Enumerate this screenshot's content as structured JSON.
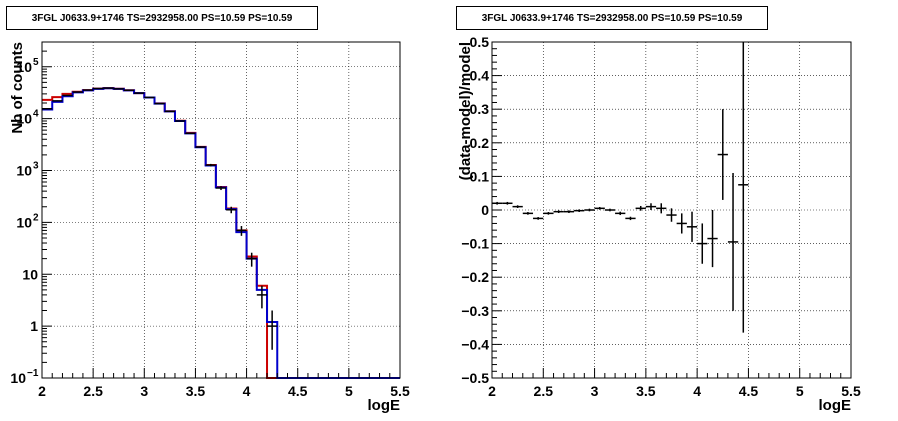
{
  "chart_data": [
    {
      "type": "line",
      "title": "3FGL J0633.9+1746 TS=2932958.00 PS=10.59 PS=10.59",
      "xlabel": "logE",
      "ylabel": "Nb of counts",
      "xlim": [
        2,
        5.5
      ],
      "ylim": [
        0.1,
        300000
      ],
      "yscale": "log",
      "grid": true,
      "x_ticks": [
        "2",
        "2.5",
        "3",
        "3.5",
        "4",
        "4.5",
        "5",
        "5.5"
      ],
      "y_ticks": [
        "10^-1",
        "1",
        "10",
        "10^2",
        "10^3",
        "10^4",
        "10^5"
      ],
      "bin_edges": [
        2.0,
        2.1,
        2.2,
        2.3,
        2.4,
        2.5,
        2.6,
        2.7,
        2.8,
        2.9,
        3.0,
        3.1,
        3.2,
        3.3,
        3.4,
        3.5,
        3.6,
        3.7,
        3.8,
        3.9,
        4.0,
        4.1,
        4.2,
        4.3,
        4.4,
        4.5,
        4.6,
        4.7,
        4.8,
        4.9,
        5.0,
        5.1,
        5.2,
        5.3,
        5.4,
        5.5
      ],
      "series": [
        {
          "color": "#0000cc",
          "style": "step",
          "values": [
            15000,
            21000,
            27000,
            32000,
            35000,
            37500,
            38500,
            37500,
            35000,
            31000,
            25500,
            19500,
            13800,
            9000,
            5200,
            2800,
            1250,
            470,
            180,
            65,
            20,
            5,
            1.2,
            0.1,
            0.1,
            0.1,
            0.1,
            0.1,
            0.1,
            0.1,
            0.1,
            0.1,
            0.1,
            0.1,
            0.1
          ]
        },
        {
          "color": "#cc0000",
          "style": "step",
          "values": [
            23000,
            26000,
            30000,
            33000,
            35500,
            37800,
            38800,
            37600,
            35200,
            31000,
            25500,
            19700,
            13900,
            9100,
            5300,
            2850,
            1280,
            480,
            185,
            70,
            22,
            6,
            0.1,
            0.1,
            0.1,
            0.1,
            0.1,
            0.1,
            0.1,
            0.1,
            0.1,
            0.1,
            0.1,
            0.1,
            0.1
          ]
        },
        {
          "color": "#000000",
          "style": "errorbar",
          "points": [
            [
              2.05,
              15500,
              15200,
              15800
            ],
            [
              2.15,
              22000,
              21600,
              22400
            ],
            [
              2.25,
              28000,
              27600,
              28400
            ],
            [
              2.35,
              32500,
              32000,
              33000
            ],
            [
              2.45,
              35500,
              35000,
              36000
            ],
            [
              2.55,
              38000,
              37500,
              38500
            ],
            [
              2.65,
              38800,
              38300,
              39300
            ],
            [
              2.75,
              37500,
              37000,
              38000
            ],
            [
              2.85,
              35200,
              34700,
              35700
            ],
            [
              2.95,
              31000,
              30600,
              31400
            ],
            [
              3.05,
              25600,
              25200,
              26000
            ],
            [
              3.15,
              19500,
              19200,
              19800
            ],
            [
              3.25,
              13800,
              13500,
              14100
            ],
            [
              3.35,
              9000,
              8800,
              9200
            ],
            [
              3.45,
              5200,
              5050,
              5350
            ],
            [
              3.55,
              2830,
              2730,
              2930
            ],
            [
              3.65,
              1270,
              1200,
              1340
            ],
            [
              3.75,
              460,
              420,
              500
            ],
            [
              3.85,
              175,
              150,
              200
            ],
            [
              3.95,
              70,
              55,
              85
            ],
            [
              4.05,
              20,
              14,
              26
            ],
            [
              4.15,
              4,
              2.2,
              6
            ],
            [
              4.25,
              1,
              0.35,
              2
            ]
          ]
        }
      ]
    },
    {
      "type": "scatter",
      "title": "3FGL J0633.9+1746 TS=2932958.00 PS=10.59 PS=10.59",
      "xlabel": "logE",
      "ylabel": "(data-model)/model",
      "xlim": [
        2,
        5.5
      ],
      "ylim": [
        -0.5,
        0.5
      ],
      "grid": true,
      "x_ticks": [
        "2",
        "2.5",
        "3",
        "3.5",
        "4",
        "4.5",
        "5",
        "5.5"
      ],
      "y_ticks": [
        "−0.5",
        "−0.4",
        "−0.3",
        "−0.2",
        "−0.1",
        "0",
        "0.1",
        "0.2",
        "0.3",
        "0.4",
        "0.5"
      ],
      "points": [
        {
          "x": 2.05,
          "y": 0.02,
          "yerr": 0.004
        },
        {
          "x": 2.15,
          "y": 0.02,
          "yerr": 0.004
        },
        {
          "x": 2.25,
          "y": 0.01,
          "yerr": 0.004
        },
        {
          "x": 2.35,
          "y": -0.01,
          "yerr": 0.004
        },
        {
          "x": 2.45,
          "y": -0.025,
          "yerr": 0.004
        },
        {
          "x": 2.55,
          "y": -0.01,
          "yerr": 0.004
        },
        {
          "x": 2.65,
          "y": -0.005,
          "yerr": 0.004
        },
        {
          "x": 2.75,
          "y": -0.005,
          "yerr": 0.004
        },
        {
          "x": 2.85,
          "y": -0.002,
          "yerr": 0.004
        },
        {
          "x": 2.95,
          "y": 0.0,
          "yerr": 0.004
        },
        {
          "x": 3.05,
          "y": 0.005,
          "yerr": 0.004
        },
        {
          "x": 3.15,
          "y": 0.0,
          "yerr": 0.004
        },
        {
          "x": 3.25,
          "y": -0.01,
          "yerr": 0.005
        },
        {
          "x": 3.35,
          "y": -0.025,
          "yerr": 0.005
        },
        {
          "x": 3.45,
          "y": 0.005,
          "yerr": 0.007
        },
        {
          "x": 3.55,
          "y": 0.01,
          "yerr": 0.01
        },
        {
          "x": 3.65,
          "y": 0.005,
          "yerr": 0.015
        },
        {
          "x": 3.75,
          "y": -0.015,
          "yerr": 0.02
        },
        {
          "x": 3.85,
          "y": -0.04,
          "yerr": 0.03
        },
        {
          "x": 3.95,
          "y": -0.05,
          "yerr": 0.045
        },
        {
          "x": 4.05,
          "y": -0.1,
          "yerr": 0.06
        },
        {
          "x": 4.15,
          "y": -0.085,
          "yerr": 0.085
        },
        {
          "x": 4.25,
          "y": 0.165,
          "yerr": 0.135
        },
        {
          "x": 4.35,
          "y": -0.095,
          "yerr": 0.205
        },
        {
          "x": 4.45,
          "y": 0.075,
          "yerr": 0.44
        }
      ]
    }
  ]
}
